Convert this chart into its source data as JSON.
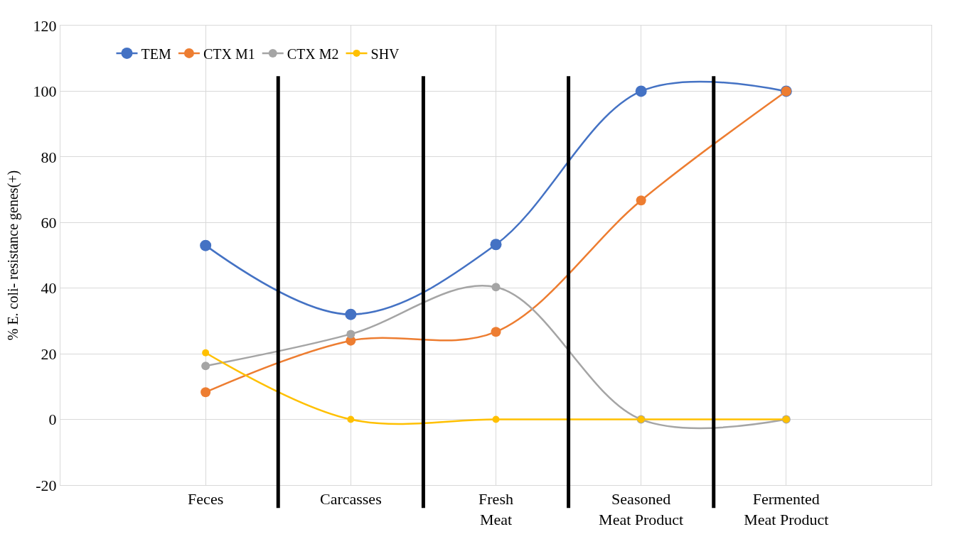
{
  "chart_data": {
    "type": "line",
    "ylabel": "% E. coli- resistance genes(+)",
    "categories": [
      null,
      "Feces",
      "Carcasses",
      "Fresh Meat",
      "Seasoned Meat Product",
      "Fermented Meat Product",
      null
    ],
    "series": [
      {
        "name": "TEM",
        "color": "#4472c4",
        "values": [
          null,
          53,
          32,
          53.3,
          100,
          100,
          null
        ]
      },
      {
        "name": "CTX M1",
        "color": "#ed7d31",
        "values": [
          null,
          8.3,
          24,
          26.7,
          66.7,
          100,
          null
        ]
      },
      {
        "name": "CTX M2",
        "color": "#a5a5a5",
        "values": [
          null,
          16.3,
          26,
          40.3,
          0,
          0,
          null
        ]
      },
      {
        "name": "SHV",
        "color": "#ffc000",
        "values": [
          null,
          20.3,
          0,
          0,
          0,
          0,
          null
        ]
      }
    ],
    "ylim": [
      -20,
      120
    ],
    "yticks": [
      -20,
      0,
      20,
      40,
      60,
      80,
      100,
      120
    ],
    "grid": true,
    "legend": "top left",
    "marker": "circle",
    "line_style": "solid"
  }
}
